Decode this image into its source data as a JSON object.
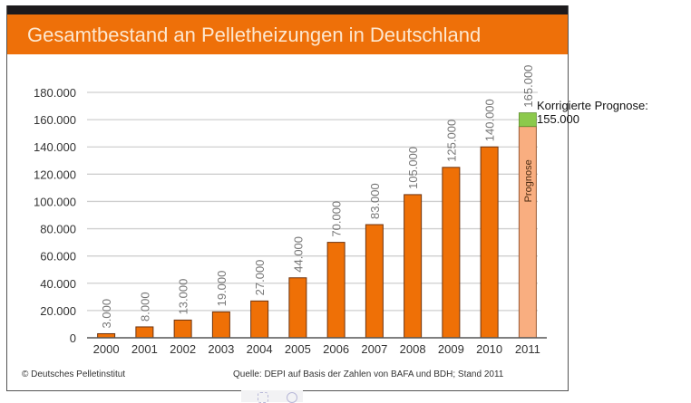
{
  "header": {
    "title": "Gesamtbestand an Pelletheizungen in Deutschland"
  },
  "footer": {
    "copyright": "© Deutsches Pelletinstitut",
    "source": "Quelle: DEPI auf Basis der Zahlen von BAFA und BDH; Stand 2011"
  },
  "annotation": {
    "line1": "Korrigierte Prognose:",
    "line2": "155.000"
  },
  "colors": {
    "title_bar": "#ee7009",
    "bar": "#ef7006",
    "bar_outline": "#6e3410",
    "forecast_bar": "#f9ae80",
    "forecast_outline": "#9a5a34",
    "correction_bar": "#8cc94c",
    "grid": "#cfcfcf",
    "text": "#333333"
  },
  "overlay_icons": [
    "circle-icon",
    "gear-icon"
  ],
  "chart_data": {
    "type": "bar",
    "title": "Gesamtbestand an Pelletheizungen in Deutschland",
    "xlabel": "",
    "ylabel": "",
    "ylim": [
      0,
      180000
    ],
    "yticks": [
      0,
      20000,
      40000,
      60000,
      80000,
      100000,
      120000,
      140000,
      160000,
      180000
    ],
    "ytick_labels": [
      "0",
      "20.000",
      "40.000",
      "60.000",
      "80.000",
      "100.000",
      "120.000",
      "140.000",
      "160.000",
      "180.000"
    ],
    "grid": true,
    "legend": "none",
    "categories": [
      "2000",
      "2001",
      "2002",
      "2003",
      "2004",
      "2005",
      "2006",
      "2007",
      "2008",
      "2009",
      "2010",
      "2011"
    ],
    "values": [
      3000,
      8000,
      13000,
      19000,
      27000,
      44000,
      70000,
      83000,
      105000,
      125000,
      140000,
      165000
    ],
    "data_labels": [
      "3.000",
      "8.000",
      "13.000",
      "19.000",
      "27.000",
      "44.000",
      "70.000",
      "83.000",
      "105.000",
      "125.000",
      "140.000",
      "165.000"
    ],
    "forecast": {
      "category": "2011",
      "label": "Prognose",
      "original_value": 165000,
      "corrected_value": 155000,
      "annotation": "Korrigierte Prognose: 155.000"
    }
  }
}
